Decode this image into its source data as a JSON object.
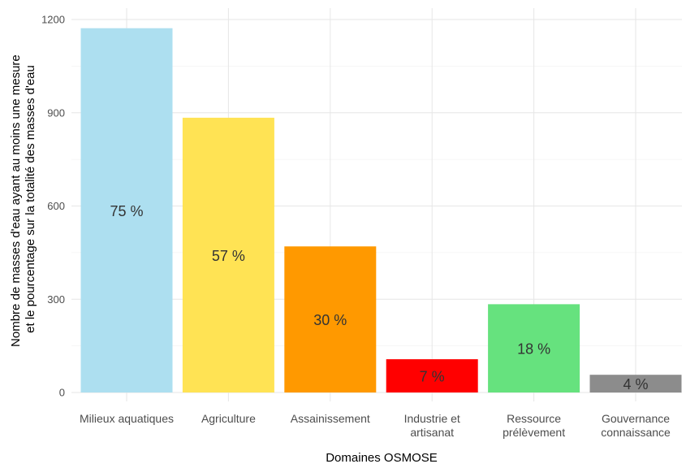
{
  "chart_data": {
    "type": "bar",
    "categories": [
      [
        "Milieux aquatiques"
      ],
      [
        "Agriculture"
      ],
      [
        "Assainissement"
      ],
      [
        "Industrie et",
        "artisanat"
      ],
      [
        "Ressource",
        "prélèvement"
      ],
      [
        "Gouvernance",
        "connaissance"
      ]
    ],
    "values": [
      1172,
      884,
      470,
      107,
      284,
      57
    ],
    "data_labels": [
      "75 %",
      "57 %",
      "30 %",
      "7 %",
      "18 %",
      "4 %"
    ],
    "colors": [
      "#ADDFF0",
      "#FFE354",
      "#FF9900",
      "#FF0000",
      "#66E27E",
      "#8C8C8C"
    ],
    "ylim": [
      0,
      1200
    ],
    "yticks": [
      0,
      300,
      600,
      900,
      1200
    ],
    "xlabel": "Domaines OSMOSE",
    "ylabel": [
      "Nombre de masses d'eau ayant au moins une mesure",
      "et le pourcentage sur la totalité des masses d'eau"
    ],
    "grid": true
  }
}
